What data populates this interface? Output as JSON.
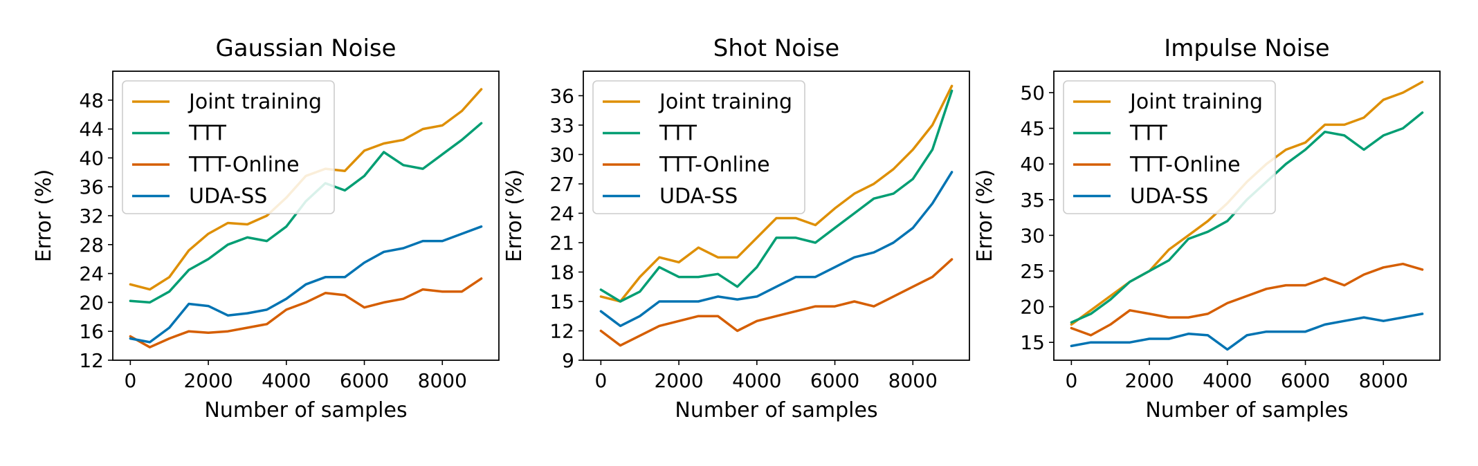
{
  "chart_data": [
    {
      "type": "line",
      "title": "Gaussian Noise",
      "xlabel": "Number of samples",
      "ylabel": "Error (%)",
      "xlim": [
        -450,
        9450
      ],
      "ylim": [
        12,
        52
      ],
      "xticks": [
        "0",
        "2000",
        "4000",
        "6000",
        "8000"
      ],
      "yticks": [
        "12",
        "16",
        "20",
        "24",
        "28",
        "32",
        "36",
        "40",
        "44",
        "48"
      ],
      "legend": "top-left",
      "series": [
        {
          "name": "Joint training",
          "color": "#de8f05",
          "x": [
            0,
            500,
            1000,
            1500,
            2000,
            2500,
            3000,
            3500,
            4000,
            4500,
            5000,
            5500,
            6000,
            6500,
            7000,
            7500,
            8000,
            8500,
            9000
          ],
          "values": [
            22.5,
            21.8,
            23.5,
            27.2,
            29.5,
            31.0,
            30.8,
            32.0,
            34.5,
            37.5,
            38.5,
            38.2,
            41.0,
            42.0,
            42.5,
            44.0,
            44.5,
            46.5,
            49.5
          ]
        },
        {
          "name": "TTT",
          "color": "#029e73",
          "x": [
            0,
            500,
            1000,
            1500,
            2000,
            2500,
            3000,
            3500,
            4000,
            4500,
            5000,
            5500,
            6000,
            6500,
            7000,
            7500,
            8000,
            8500,
            9000
          ],
          "values": [
            20.2,
            20.0,
            21.5,
            24.5,
            26.0,
            28.0,
            29.0,
            28.5,
            30.5,
            34.0,
            36.5,
            35.5,
            37.5,
            40.8,
            39.0,
            38.5,
            40.5,
            42.5,
            44.8
          ]
        },
        {
          "name": "TTT-Online",
          "color": "#d55e00",
          "x": [
            0,
            500,
            1000,
            1500,
            2000,
            2500,
            3000,
            3500,
            4000,
            4500,
            5000,
            5500,
            6000,
            6500,
            7000,
            7500,
            8000,
            8500,
            9000
          ],
          "values": [
            15.3,
            13.8,
            15.0,
            16.0,
            15.8,
            16.0,
            16.5,
            17.0,
            19.0,
            20.0,
            21.3,
            21.0,
            19.3,
            20.0,
            20.5,
            21.8,
            21.5,
            21.5,
            23.3
          ]
        },
        {
          "name": "UDA-SS",
          "color": "#0173b2",
          "x": [
            0,
            500,
            1000,
            1500,
            2000,
            2500,
            3000,
            3500,
            4000,
            4500,
            5000,
            5500,
            6000,
            6500,
            7000,
            7500,
            8000,
            8500,
            9000
          ],
          "values": [
            15.0,
            14.5,
            16.5,
            19.8,
            19.5,
            18.2,
            18.5,
            19.0,
            20.5,
            22.5,
            23.5,
            23.5,
            25.5,
            27.0,
            27.5,
            28.5,
            28.5,
            29.5,
            30.5
          ]
        }
      ]
    },
    {
      "type": "line",
      "title": "Shot Noise",
      "xlabel": "Number of samples",
      "ylabel": "Error (%)",
      "xlim": [
        -450,
        9450
      ],
      "ylim": [
        9,
        38.5
      ],
      "xticks": [
        "0",
        "2000",
        "4000",
        "6000",
        "8000"
      ],
      "yticks": [
        "9",
        "12",
        "15",
        "18",
        "21",
        "24",
        "27",
        "30",
        "33",
        "36"
      ],
      "legend": "top-left",
      "series": [
        {
          "name": "Joint training",
          "color": "#de8f05",
          "x": [
            0,
            500,
            1000,
            1500,
            2000,
            2500,
            3000,
            3500,
            4000,
            4500,
            5000,
            5500,
            6000,
            6500,
            7000,
            7500,
            8000,
            8500,
            9000
          ],
          "values": [
            15.5,
            15.0,
            17.5,
            19.5,
            19.0,
            20.5,
            19.5,
            19.5,
            21.5,
            23.5,
            23.5,
            22.8,
            24.5,
            26.0,
            27.0,
            28.5,
            30.5,
            33.0,
            37.0
          ]
        },
        {
          "name": "TTT",
          "color": "#029e73",
          "x": [
            0,
            500,
            1000,
            1500,
            2000,
            2500,
            3000,
            3500,
            4000,
            4500,
            5000,
            5500,
            6000,
            6500,
            7000,
            7500,
            8000,
            8500,
            9000
          ],
          "values": [
            16.2,
            15.0,
            16.0,
            18.5,
            17.5,
            17.5,
            17.8,
            16.5,
            18.5,
            21.5,
            21.5,
            21.0,
            22.5,
            24.0,
            25.5,
            26.0,
            27.5,
            30.5,
            36.5
          ]
        },
        {
          "name": "TTT-Online",
          "color": "#d55e00",
          "x": [
            0,
            500,
            1000,
            1500,
            2000,
            2500,
            3000,
            3500,
            4000,
            4500,
            5000,
            5500,
            6000,
            6500,
            7000,
            7500,
            8000,
            8500,
            9000
          ],
          "values": [
            12.0,
            10.5,
            11.5,
            12.5,
            13.0,
            13.5,
            13.5,
            12.0,
            13.0,
            13.5,
            14.0,
            14.5,
            14.5,
            15.0,
            14.5,
            15.5,
            16.5,
            17.5,
            19.3
          ]
        },
        {
          "name": "UDA-SS",
          "color": "#0173b2",
          "x": [
            0,
            500,
            1000,
            1500,
            2000,
            2500,
            3000,
            3500,
            4000,
            4500,
            5000,
            5500,
            6000,
            6500,
            7000,
            7500,
            8000,
            8500,
            9000
          ],
          "values": [
            14.0,
            12.5,
            13.5,
            15.0,
            15.0,
            15.0,
            15.5,
            15.2,
            15.5,
            16.5,
            17.5,
            17.5,
            18.5,
            19.5,
            20.0,
            21.0,
            22.5,
            25.0,
            28.2
          ]
        }
      ]
    },
    {
      "type": "line",
      "title": "Impulse Noise",
      "xlabel": "Number of samples",
      "ylabel": "Error (%)",
      "xlim": [
        -450,
        9450
      ],
      "ylim": [
        12.5,
        53
      ],
      "xticks": [
        "0",
        "2000",
        "4000",
        "6000",
        "8000"
      ],
      "yticks": [
        "15",
        "20",
        "25",
        "30",
        "35",
        "40",
        "45",
        "50"
      ],
      "legend": "top-left",
      "series": [
        {
          "name": "Joint training",
          "color": "#de8f05",
          "x": [
            0,
            500,
            1000,
            1500,
            2000,
            2500,
            3000,
            3500,
            4000,
            4500,
            5000,
            5500,
            6000,
            6500,
            7000,
            7500,
            8000,
            8500,
            9000
          ],
          "values": [
            17.5,
            19.5,
            21.5,
            23.5,
            25.0,
            28.0,
            30.0,
            32.0,
            34.5,
            37.5,
            40.0,
            42.0,
            43.0,
            45.5,
            45.5,
            46.5,
            49.0,
            50.0,
            51.5
          ]
        },
        {
          "name": "TTT",
          "color": "#029e73",
          "x": [
            0,
            500,
            1000,
            1500,
            2000,
            2500,
            3000,
            3500,
            4000,
            4500,
            5000,
            5500,
            6000,
            6500,
            7000,
            7500,
            8000,
            8500,
            9000
          ],
          "values": [
            17.8,
            19.0,
            21.0,
            23.5,
            25.0,
            26.5,
            29.5,
            30.5,
            32.0,
            35.0,
            37.5,
            40.0,
            42.0,
            44.5,
            44.0,
            42.0,
            44.0,
            45.0,
            47.2
          ]
        },
        {
          "name": "TTT-Online",
          "color": "#d55e00",
          "x": [
            0,
            500,
            1000,
            1500,
            2000,
            2500,
            3000,
            3500,
            4000,
            4500,
            5000,
            5500,
            6000,
            6500,
            7000,
            7500,
            8000,
            8500,
            9000
          ],
          "values": [
            17.0,
            16.0,
            17.5,
            19.5,
            19.0,
            18.5,
            18.5,
            19.0,
            20.5,
            21.5,
            22.5,
            23.0,
            23.0,
            24.0,
            23.0,
            24.5,
            25.5,
            26.0,
            25.2
          ]
        },
        {
          "name": "UDA-SS",
          "color": "#0173b2",
          "x": [
            0,
            500,
            1000,
            1500,
            2000,
            2500,
            3000,
            3500,
            4000,
            4500,
            5000,
            5500,
            6000,
            6500,
            7000,
            7500,
            8000,
            8500,
            9000
          ],
          "values": [
            14.5,
            15.0,
            15.0,
            15.0,
            15.5,
            15.5,
            16.2,
            16.0,
            14.0,
            16.0,
            16.5,
            16.5,
            16.5,
            17.5,
            18.0,
            18.5,
            18.0,
            18.5,
            19.0
          ]
        }
      ]
    }
  ]
}
